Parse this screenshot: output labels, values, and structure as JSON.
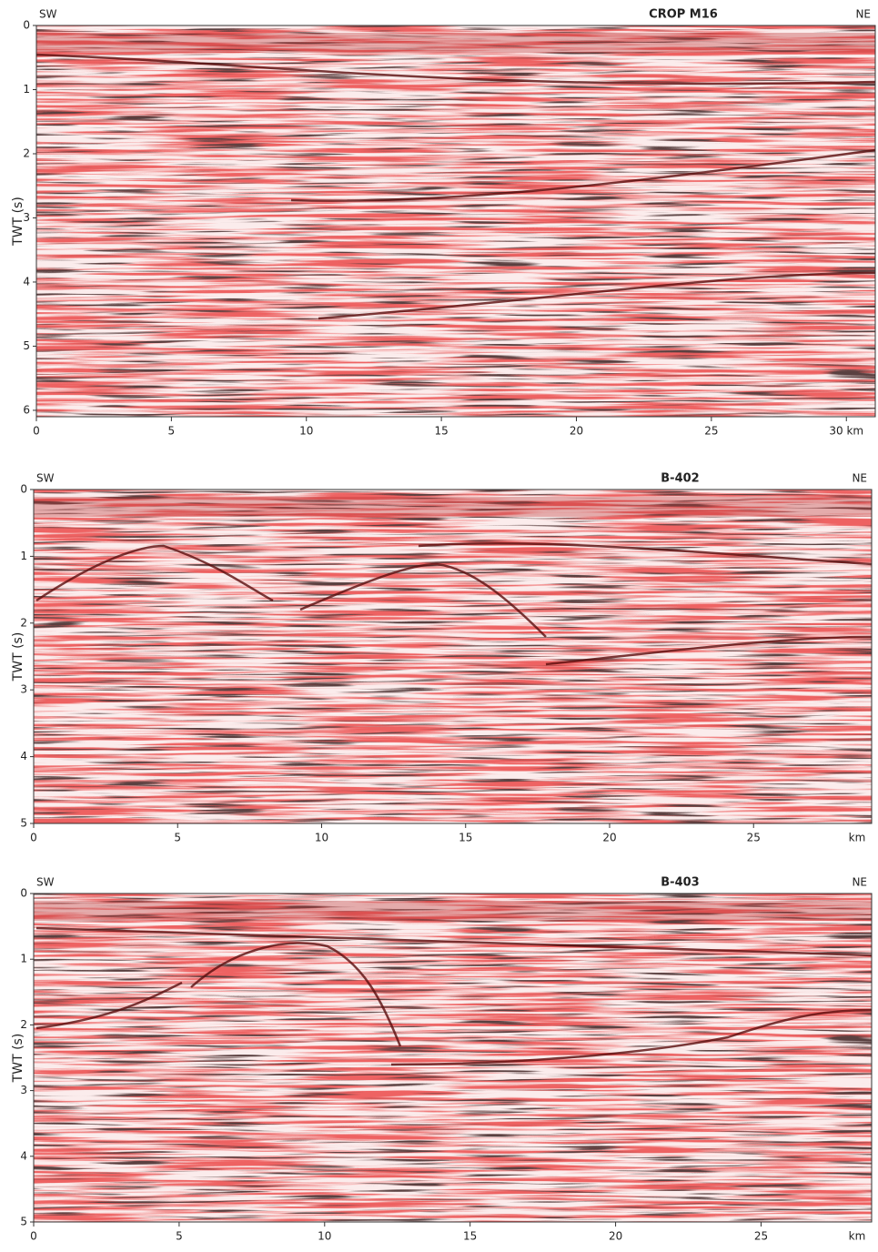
{
  "panels": [
    {
      "title": "CROP M16",
      "left": "SW",
      "right": "NE",
      "ylabel": "TWT (s)",
      "ylim": [
        0,
        6.1
      ],
      "yticks": [
        0,
        1,
        2,
        3,
        4,
        5,
        6
      ],
      "xlim": [
        0,
        31.07
      ],
      "xticks": [
        0,
        5,
        10,
        15,
        20,
        25,
        {
          "value": 30,
          "label": "30 km"
        }
      ]
    },
    {
      "title": "B-402",
      "left": "SW",
      "right": "NE",
      "ylabel": "TWT (s)",
      "ylim": [
        0,
        5
      ],
      "yticks": [
        0,
        1,
        2,
        3,
        4,
        5
      ],
      "xlim": [
        0,
        29.1
      ],
      "xticks": [
        0,
        5,
        10,
        15,
        20,
        25
      ],
      "xunit": "km"
    },
    {
      "title": "B-403",
      "left": "SW",
      "right": "NE",
      "ylabel": "TWT (s)",
      "ylim": [
        0,
        5
      ],
      "yticks": [
        0,
        1,
        2,
        3,
        4,
        5
      ],
      "xlim": [
        0,
        28.8
      ],
      "xticks": [
        0,
        5,
        10,
        15,
        20,
        25
      ],
      "xunit": "km"
    }
  ]
}
